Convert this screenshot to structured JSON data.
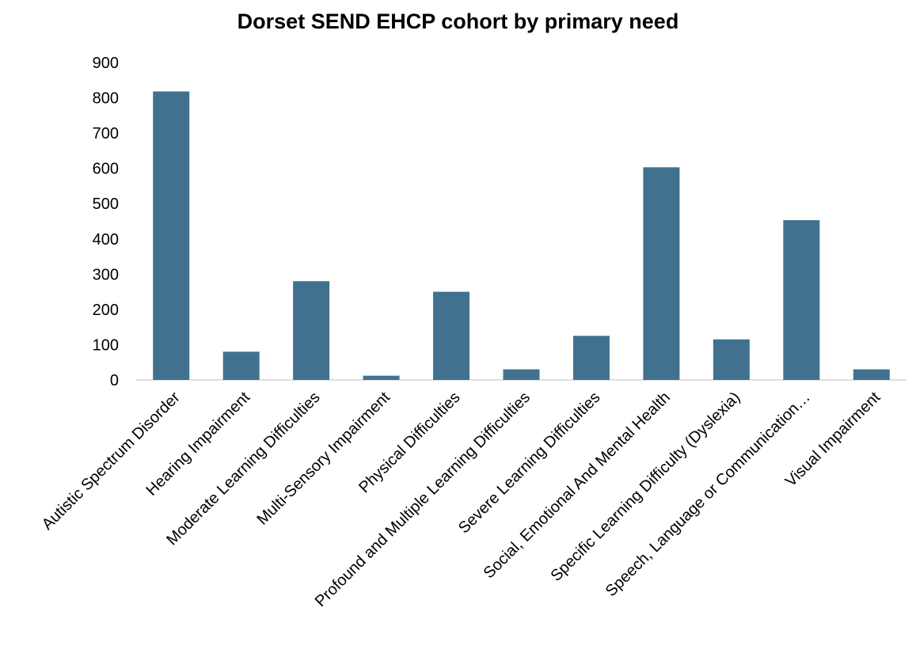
{
  "chart_data": {
    "type": "bar",
    "title": "Dorset SEND EHCP cohort by primary need",
    "xlabel": "",
    "ylabel": "",
    "ylim": [
      0,
      900
    ],
    "yticks": [
      0,
      100,
      200,
      300,
      400,
      500,
      600,
      700,
      800,
      900
    ],
    "grid": false,
    "legend": "none",
    "bar_color": "#41718F",
    "categories": [
      "Autistic Spectrum Disorder",
      "Hearing Impairment",
      "Moderate Learning Difficulties",
      "Multi-Sensory Impairment",
      "Physical Difficulties",
      "Profound and Multiple Learning Difficulties",
      "Severe Learning Difficulties",
      "Social, Emotional And Mental Health",
      "Specific Learning Difficulty (Dyslexia)",
      "Speech, Language or Communication…",
      "Visual Impairment"
    ],
    "values": [
      818,
      80,
      280,
      12,
      250,
      30,
      125,
      603,
      115,
      453,
      30
    ]
  }
}
